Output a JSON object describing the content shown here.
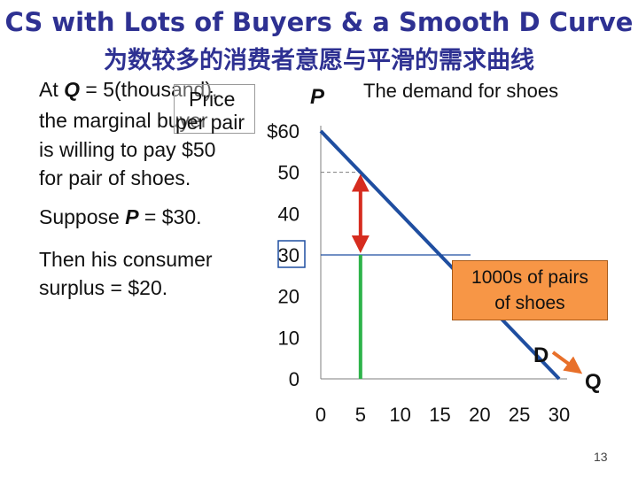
{
  "title": "CS with Lots of Buyers & a Smooth D Curve",
  "subtitle": "为数较多的消费者意愿与平滑的需求曲线",
  "text": {
    "line1_pre": "At ",
    "line1_q": "Q",
    "line1_post": " = 5(thousand),",
    "line2": "the marginal buyer",
    "line3": "is willing to pay $50",
    "line4": "for pair of shoes.",
    "suppose_pre": "Suppose ",
    "suppose_p": "P",
    "suppose_post": " = $30.",
    "then1": "Then his consumer",
    "then2": "surplus = $20."
  },
  "price_per_pair": {
    "line1": "Price",
    "line2": "per pair"
  },
  "chart_data": {
    "type": "line",
    "title": "The demand for shoes",
    "ylabel": "P",
    "xlabel": "Q",
    "x_unit_callout": "1000s of pairs\nof shoes",
    "demand_label": "D",
    "x_ticks": [
      "0",
      "5",
      "10",
      "15",
      "20",
      "25",
      "30"
    ],
    "y_ticks": [
      "0",
      "10",
      "20",
      "30",
      "40",
      "50",
      "$60"
    ],
    "xlim": [
      0,
      30
    ],
    "ylim": [
      0,
      60
    ],
    "series": [
      {
        "name": "D",
        "x": [
          0,
          30
        ],
        "y": [
          60,
          0
        ]
      }
    ],
    "price": 30,
    "marginal_buyer": {
      "q": 5,
      "willingness_to_pay": 50,
      "surplus": 20
    },
    "colors": {
      "demand": "#1f4ea0",
      "price_line": "#1f4ea0",
      "quantity_line": "#2db34a",
      "surplus_arrow": "#d62c1f",
      "arrow_q": "#e8702a",
      "callout": "#f79646",
      "title": "#2e3192"
    }
  },
  "page_number": "13"
}
